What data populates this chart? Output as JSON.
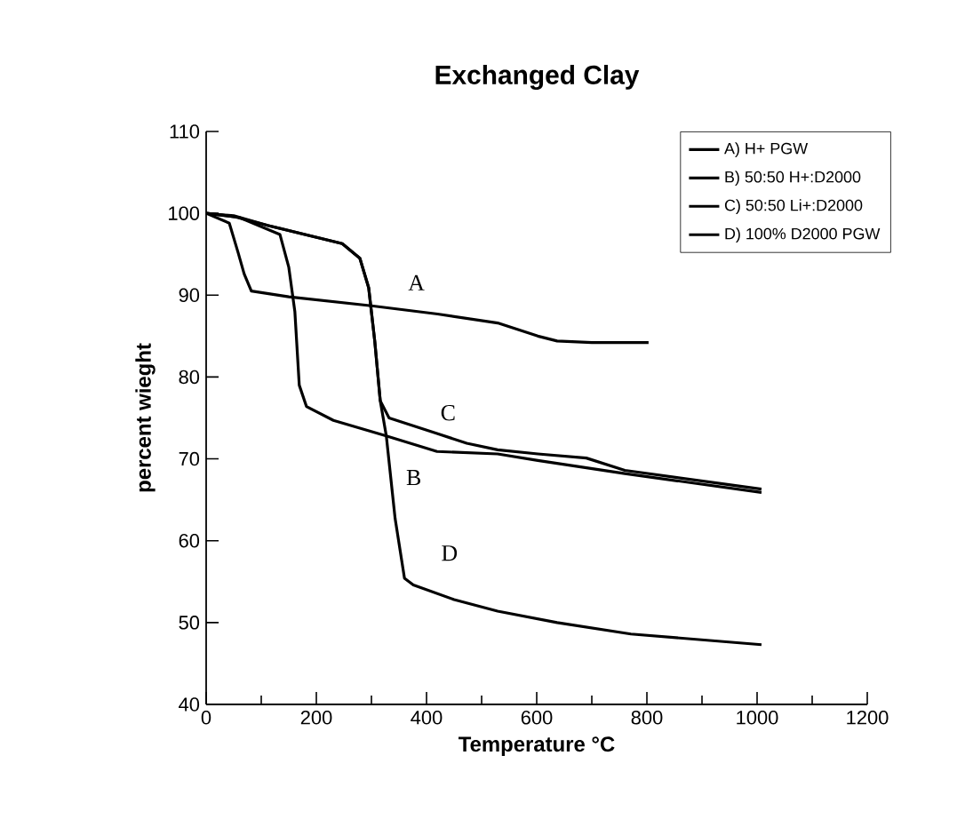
{
  "chart_data": {
    "type": "line",
    "title": "Exchanged Clay",
    "xlabel": "Temperature  °C",
    "ylabel": "percent wieght",
    "xlim": [
      0,
      1200
    ],
    "xticks": [
      0,
      200,
      400,
      600,
      800,
      1000,
      1200
    ],
    "ylim": [
      40,
      110
    ],
    "yticks": [
      40,
      50,
      60,
      70,
      80,
      90,
      100,
      110
    ],
    "grid": false,
    "legend": "top right",
    "marker": "none",
    "line_style": "solid",
    "series": [
      {
        "name": "A) H+ PGW",
        "color": "#000000",
        "x": [
          0,
          42,
          58,
          69,
          82,
          150,
          300,
          420,
          529,
          602,
          637,
          700,
          803
        ],
        "values": [
          100,
          98.8,
          95.2,
          92.6,
          90.5,
          89.8,
          88.7,
          87.7,
          86.6,
          85,
          84.4,
          84.2,
          84.2
        ]
      },
      {
        "name": "B) 50:50 H+:D2000",
        "color": "#000000",
        "x": [
          0,
          60,
          134,
          150,
          161,
          169,
          182,
          231,
          327,
          419,
          529,
          602,
          760,
          1008
        ],
        "values": [
          100,
          99.5,
          97.4,
          93.4,
          88,
          79,
          76.4,
          74.7,
          72.8,
          70.9,
          70.6,
          69.8,
          68.2,
          65.9
        ]
      },
      {
        "name": "C) 50:50 Li+:D2000",
        "color": "#000000",
        "x": [
          0,
          50,
          113,
          247,
          279,
          295,
          306,
          316,
          332,
          419,
          473,
          529,
          602,
          690,
          760,
          1008
        ],
        "values": [
          100,
          99.6,
          98.5,
          96.3,
          94.5,
          90.9,
          84.4,
          77.1,
          75,
          73.1,
          71.9,
          71.1,
          70.6,
          70.1,
          68.6,
          66.3
        ]
      },
      {
        "name": "D) 100% D2000 PGW",
        "color": "#000000",
        "x": [
          0,
          50,
          113,
          247,
          279,
          295,
          306,
          316,
          327,
          343,
          360,
          376,
          450,
          529,
          637,
          771,
          1008
        ],
        "values": [
          100,
          99.7,
          98.5,
          96.3,
          94.5,
          90.9,
          84.4,
          77.1,
          72.8,
          62.7,
          55.4,
          54.6,
          52.8,
          51.4,
          50,
          48.6,
          47.3
        ]
      }
    ],
    "annotations": [
      "A",
      "B",
      "C",
      "D"
    ]
  }
}
